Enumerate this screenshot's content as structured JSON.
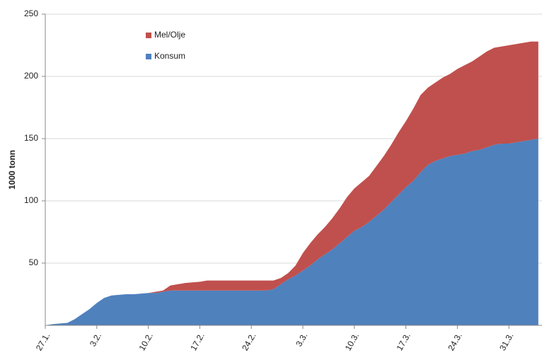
{
  "chart_data": {
    "type": "stacked_area",
    "y_label": "1000 tonn",
    "categories": [
      "27.1.",
      null,
      null,
      null,
      null,
      null,
      null,
      "3.2.",
      null,
      null,
      null,
      null,
      null,
      null,
      "10.2.",
      null,
      null,
      null,
      null,
      null,
      null,
      "17.2.",
      null,
      null,
      null,
      null,
      null,
      null,
      "24.2.",
      null,
      null,
      null,
      null,
      null,
      null,
      "3.3.",
      null,
      null,
      null,
      null,
      null,
      null,
      "10.3.",
      null,
      null,
      null,
      null,
      null,
      null,
      "17.3.",
      null,
      null,
      null,
      null,
      null,
      null,
      "24.3.",
      null,
      null,
      null,
      null,
      null,
      null,
      "31.3.",
      null,
      null,
      null,
      null
    ],
    "series": [
      {
        "name": "Konsum",
        "color": "#4f81bd",
        "values": [
          0,
          1,
          1.5,
          2,
          5,
          9,
          13,
          18,
          22,
          24,
          24.5,
          25,
          25,
          25.5,
          26,
          26,
          27,
          28,
          28,
          28,
          28,
          28,
          28,
          28,
          28,
          28,
          28,
          28,
          28,
          28,
          28,
          29,
          33,
          37,
          40,
          44,
          48,
          53,
          57,
          61,
          66,
          71,
          76,
          79,
          83,
          88,
          93,
          99,
          105,
          111,
          116,
          123,
          129,
          132,
          134,
          136,
          137,
          138,
          140,
          141,
          143,
          145,
          146,
          146,
          147,
          148,
          149,
          150
        ]
      },
      {
        "name": "Mel/Olje",
        "color": "#c0504d",
        "values": [
          0,
          0,
          0,
          0,
          0,
          0,
          0,
          0,
          0,
          0,
          0,
          0,
          0,
          0,
          0,
          1,
          1,
          4,
          5,
          6,
          6.5,
          7,
          8,
          8,
          8,
          8,
          8,
          8,
          8,
          8,
          8,
          7,
          5,
          5,
          8,
          14,
          18,
          20,
          22,
          25,
          28,
          32,
          34,
          36,
          37,
          40,
          43,
          46,
          50,
          53,
          58,
          62,
          62,
          63,
          65,
          66,
          69,
          71,
          72,
          75,
          77,
          78,
          78,
          79,
          79,
          79,
          79,
          78
        ]
      }
    ],
    "ylim": [
      0,
      250
    ],
    "yticks": [
      50,
      100,
      150,
      200,
      250
    ],
    "grid": true
  }
}
